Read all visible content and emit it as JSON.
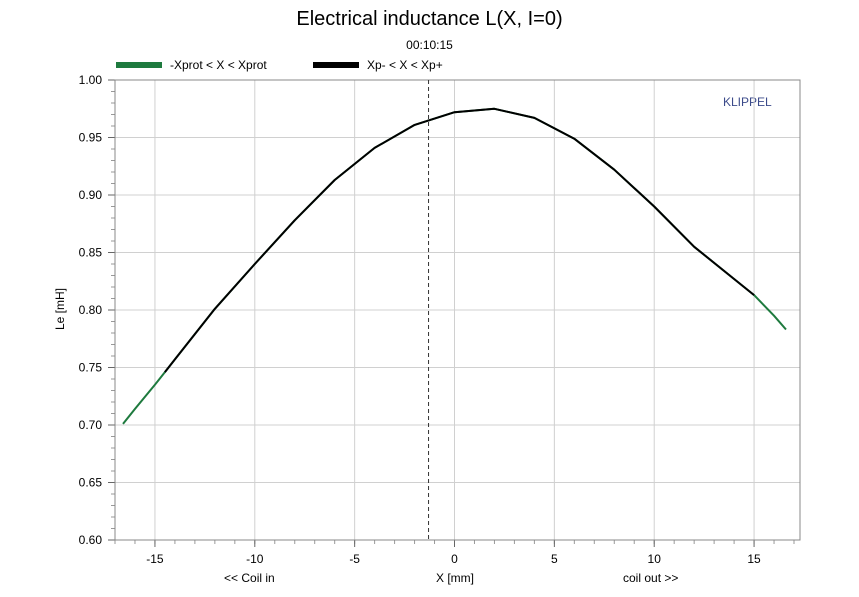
{
  "chart_data": {
    "type": "line",
    "title": "Electrical inductance L(X, I=0)",
    "subtitle": "00:10:15",
    "brand": "KLIPPEL",
    "ylabel": "Le [mH]",
    "xlabel": "X [mm]",
    "x_left_note": "<< Coil in",
    "x_right_note": "coil out >>",
    "xlim": [
      -17,
      17.3
    ],
    "ylim": [
      0.6,
      1.0
    ],
    "xticks": [
      -15,
      -10,
      -5,
      0,
      5,
      10,
      15
    ],
    "xtick_labels": [
      "-15",
      "-10",
      "-5",
      "0",
      "5",
      "10",
      "15"
    ],
    "yticks": [
      0.6,
      0.65,
      0.7,
      0.75,
      0.8,
      0.85,
      0.9,
      0.95,
      1.0
    ],
    "ytick_labels": [
      "0.60",
      "0.65",
      "0.70",
      "0.75",
      "0.80",
      "0.85",
      "0.90",
      "0.95",
      "1.00"
    ],
    "grid": true,
    "rest_position_marker_x": -1.3,
    "legend_position": "top-left",
    "series": [
      {
        "name": "-Xprot < X < Xprot",
        "color": "#1e7a3e",
        "x": [
          -16.6,
          -16,
          -15,
          -14.5,
          -14,
          -12,
          -10,
          -8,
          -6,
          -4,
          -2,
          0,
          2,
          4,
          6,
          8,
          10,
          12,
          14,
          15,
          16,
          16.6
        ],
        "y": [
          0.701,
          0.714,
          0.735,
          0.746,
          0.757,
          0.801,
          0.84,
          0.878,
          0.913,
          0.941,
          0.961,
          0.972,
          0.975,
          0.967,
          0.949,
          0.922,
          0.89,
          0.855,
          0.827,
          0.813,
          0.795,
          0.783
        ]
      },
      {
        "name": "Xp- < X < Xp+",
        "color": "#000000",
        "x": [
          -14.5,
          -14,
          -12,
          -10,
          -8,
          -6,
          -4,
          -2,
          0,
          2,
          4,
          6,
          8,
          10,
          12,
          14,
          15
        ],
        "y": [
          0.746,
          0.757,
          0.801,
          0.84,
          0.878,
          0.913,
          0.941,
          0.961,
          0.972,
          0.975,
          0.967,
          0.949,
          0.922,
          0.89,
          0.855,
          0.827,
          0.813
        ]
      }
    ]
  }
}
